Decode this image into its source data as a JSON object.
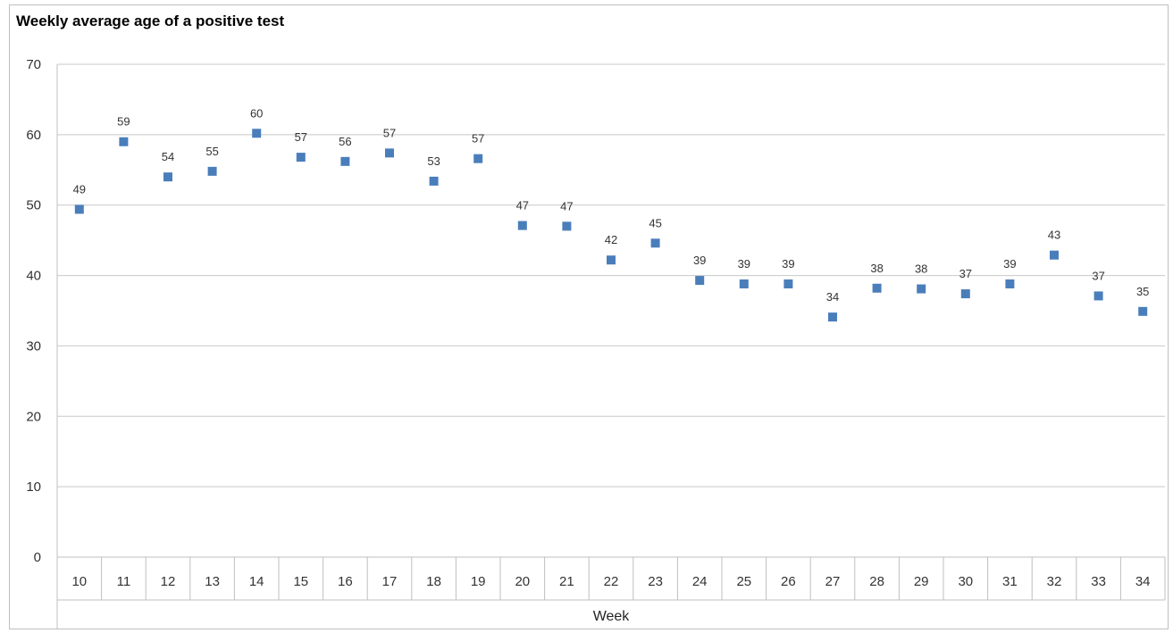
{
  "chart_data": {
    "type": "scatter",
    "title": "Weekly average age of a positive test",
    "xlabel": "Week",
    "ylabel": "",
    "ylim": [
      0,
      70
    ],
    "yticks": [
      0,
      10,
      20,
      30,
      40,
      50,
      60,
      70
    ],
    "grid": true,
    "categories": [
      "10",
      "11",
      "12",
      "13",
      "14",
      "15",
      "16",
      "17",
      "18",
      "19",
      "20",
      "21",
      "22",
      "23",
      "24",
      "25",
      "26",
      "27",
      "28",
      "29",
      "30",
      "31",
      "32",
      "33",
      "34"
    ],
    "values": [
      49.4,
      59.0,
      54.0,
      54.8,
      60.2,
      56.8,
      56.2,
      57.4,
      53.4,
      56.6,
      47.1,
      47.0,
      42.2,
      44.6,
      39.3,
      38.8,
      38.8,
      34.1,
      38.2,
      38.1,
      37.4,
      38.8,
      42.9,
      37.1,
      34.9
    ],
    "data_labels": [
      "49",
      "59",
      "54",
      "55",
      "60",
      "57",
      "56",
      "57",
      "53",
      "57",
      "47",
      "47",
      "42",
      "45",
      "39",
      "39",
      "39",
      "34",
      "38",
      "38",
      "37",
      "39",
      "43",
      "37",
      "35"
    ],
    "marker": "square",
    "marker_color": "#4a7ebb",
    "grid_color": "#c8c8c8"
  }
}
